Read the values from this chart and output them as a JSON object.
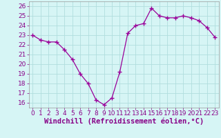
{
  "x": [
    0,
    1,
    2,
    3,
    4,
    5,
    6,
    7,
    8,
    9,
    10,
    11,
    12,
    13,
    14,
    15,
    16,
    17,
    18,
    19,
    20,
    21,
    22,
    23
  ],
  "y": [
    23.0,
    22.5,
    22.3,
    22.3,
    21.5,
    20.5,
    19.0,
    18.0,
    16.3,
    15.8,
    16.5,
    19.2,
    23.2,
    24.0,
    24.2,
    25.8,
    25.0,
    24.8,
    24.8,
    25.0,
    24.8,
    24.5,
    23.8,
    22.8
  ],
  "ylim": [
    15.5,
    26.5
  ],
  "xlim": [
    -0.5,
    23.5
  ],
  "yticks": [
    16,
    17,
    18,
    19,
    20,
    21,
    22,
    23,
    24,
    25,
    26
  ],
  "xticks": [
    0,
    1,
    2,
    3,
    4,
    5,
    6,
    7,
    8,
    9,
    10,
    11,
    12,
    13,
    14,
    15,
    16,
    17,
    18,
    19,
    20,
    21,
    22,
    23
  ],
  "xlabel": "Windchill (Refroidissement éolien,°C)",
  "line_color": "#990099",
  "marker": "+",
  "bg_color": "#d6f5f5",
  "grid_color": "#b0dede",
  "label_color": "#880088",
  "tick_fontsize": 6.5,
  "xlabel_fontsize": 7.5
}
